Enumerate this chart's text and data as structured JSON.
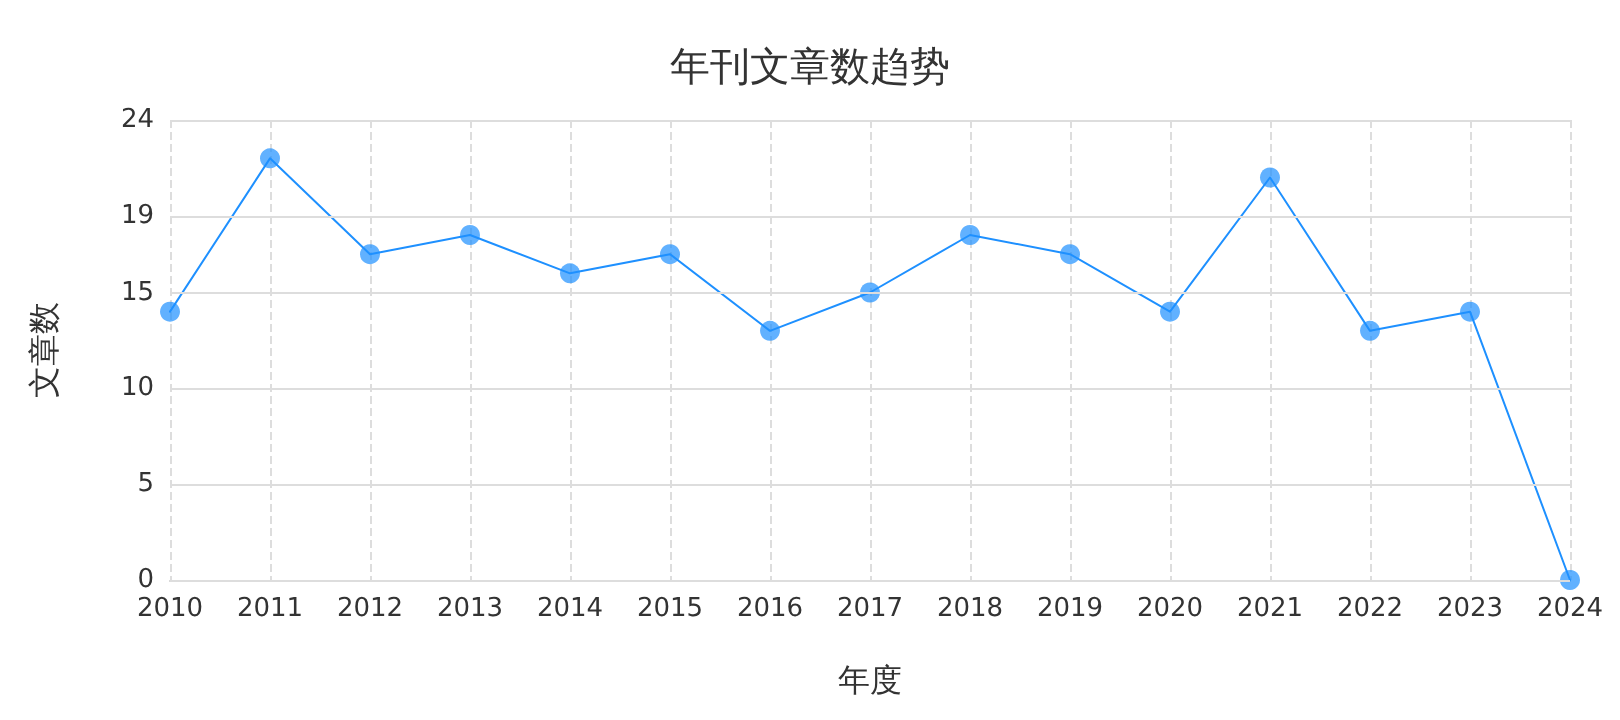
{
  "chart_data": {
    "type": "line",
    "title": "年刊文章数趋势",
    "xlabel": "年度",
    "ylabel": "文章数",
    "categories": [
      "2010",
      "2011",
      "2012",
      "2013",
      "2014",
      "2015",
      "2016",
      "2017",
      "2018",
      "2019",
      "2020",
      "2021",
      "2022",
      "2023",
      "2024"
    ],
    "series": [
      {
        "color": "#1e90ff",
        "values": [
          14,
          22,
          17,
          18,
          16,
          17,
          13,
          15,
          18,
          17,
          14,
          21,
          13,
          14,
          0
        ]
      }
    ],
    "ylim": [
      0,
      24
    ],
    "yticks": [
      0,
      5,
      10,
      15,
      19,
      24
    ],
    "grid": true,
    "marker": "circle",
    "line_style": "solid"
  }
}
